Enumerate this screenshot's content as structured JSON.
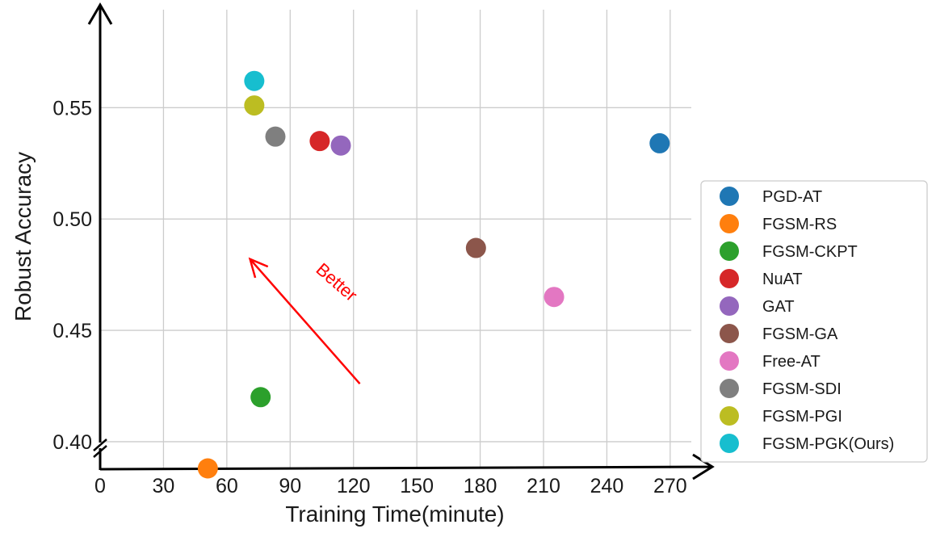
{
  "chart_data": {
    "type": "scatter",
    "title": "",
    "xlabel": "Training Time(minute)",
    "ylabel": "Robust Accuracy",
    "xlim": [
      0,
      280
    ],
    "ylim": [
      0.388,
      0.594
    ],
    "xticks": [
      0,
      30,
      60,
      90,
      120,
      150,
      180,
      210,
      240,
      270
    ],
    "yticks": [
      0.4,
      0.45,
      0.5,
      0.55
    ],
    "ytick_labels": [
      "0.40",
      "0.45",
      "0.50",
      "0.55"
    ],
    "grid": true,
    "legend_position": "right",
    "series": [
      {
        "name": "PGD-AT",
        "x": 265,
        "y": 0.534,
        "color": "#1f77b4"
      },
      {
        "name": "FGSM-RS",
        "x": 51,
        "y": 0.388,
        "color": "#ff7f0e"
      },
      {
        "name": "FGSM-CKPT",
        "x": 76,
        "y": 0.42,
        "color": "#2ca02c"
      },
      {
        "name": "NuAT",
        "x": 104,
        "y": 0.535,
        "color": "#d62728"
      },
      {
        "name": "GAT",
        "x": 114,
        "y": 0.533,
        "color": "#9467bd"
      },
      {
        "name": "FGSM-GA",
        "x": 178,
        "y": 0.487,
        "color": "#8c564b"
      },
      {
        "name": "Free-AT",
        "x": 215,
        "y": 0.465,
        "color": "#e377c2"
      },
      {
        "name": "FGSM-SDI",
        "x": 83,
        "y": 0.537,
        "color": "#7f7f7f"
      },
      {
        "name": "FGSM-PGI",
        "x": 73,
        "y": 0.551,
        "color": "#bcbd22"
      },
      {
        "name": "FGSM-PGK(Ours)",
        "x": 73,
        "y": 0.562,
        "color": "#17becf"
      }
    ],
    "annotations": [
      {
        "text": "Better",
        "color": "#ff0000",
        "arrow_from": [
          123,
          0.426
        ],
        "arrow_to": [
          71,
          0.482
        ]
      }
    ]
  }
}
